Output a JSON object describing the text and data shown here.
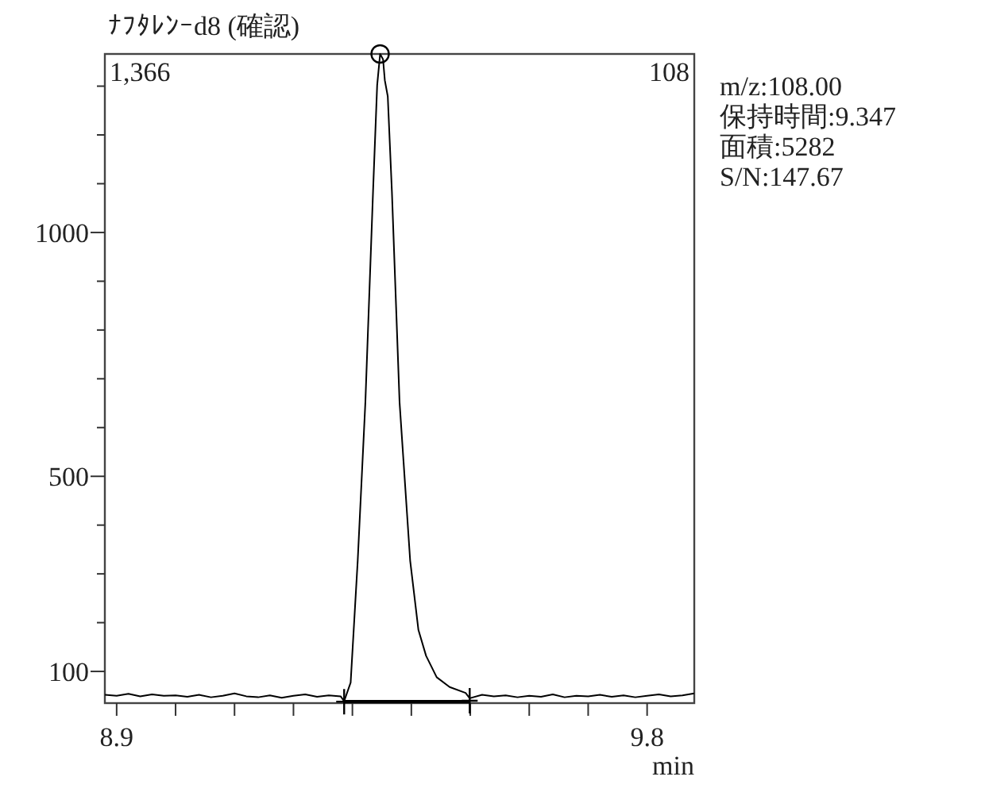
{
  "chart_data": {
    "type": "line",
    "title": "ﾅﾌﾀﾚﾝｰd8 (確認)",
    "xlabel": "min",
    "annotations": [
      "1,366",
      "108",
      "m/z:108.00",
      "保持時間:9.347",
      "面積:5282",
      "S/N:147.67"
    ],
    "xlim": [
      8.88,
      9.88
    ],
    "ylim": [
      35,
      1366
    ],
    "xticks": [
      8.9,
      {
        "value": 9.0,
        "label": null
      },
      {
        "value": 9.1,
        "label": null
      },
      {
        "value": 9.2,
        "label": null
      },
      {
        "value": 9.3,
        "label": null
      },
      {
        "value": 9.4,
        "label": null
      },
      {
        "value": 9.5,
        "label": null
      },
      {
        "value": 9.6,
        "label": null
      },
      {
        "value": 9.7,
        "label": null
      },
      9.8
    ],
    "yticks": [
      100,
      {
        "value": 200,
        "label": null
      },
      {
        "value": 300,
        "label": null
      },
      {
        "value": 400,
        "label": null
      },
      500,
      {
        "value": 600,
        "label": null
      },
      {
        "value": 700,
        "label": null
      },
      {
        "value": 800,
        "label": null
      },
      {
        "value": 900,
        "label": null
      },
      1000,
      {
        "value": 1100,
        "label": null
      },
      {
        "value": 1200,
        "label": null
      },
      {
        "value": 1300,
        "label": null
      }
    ],
    "grid": false,
    "series": [
      {
        "type": "line",
        "color": "#000000",
        "marker": "none",
        "x": [
          8.88,
          8.9,
          8.92,
          8.94,
          8.96,
          8.98,
          9.0,
          9.02,
          9.04,
          9.06,
          9.08,
          9.1,
          9.12,
          9.14,
          9.16,
          9.18,
          9.2,
          9.22,
          9.24,
          9.26,
          9.28,
          9.286,
          9.297,
          9.309,
          9.322,
          9.335,
          9.342,
          9.347,
          9.352,
          9.355,
          9.36,
          9.367,
          9.38,
          9.398,
          9.412,
          9.425,
          9.443,
          9.465,
          9.492,
          9.499,
          9.52,
          9.54,
          9.56,
          9.58,
          9.6,
          9.62,
          9.64,
          9.66,
          9.68,
          9.7,
          9.72,
          9.74,
          9.76,
          9.78,
          9.8,
          9.82,
          9.84,
          9.86,
          9.88
        ],
        "values": [
          52,
          50,
          54,
          49,
          53,
          50,
          51,
          48,
          52,
          47,
          50,
          55,
          49,
          47,
          51,
          46,
          50,
          53,
          48,
          51,
          49,
          39,
          77,
          327,
          652,
          1084,
          1302,
          1366,
          1355,
          1312,
          1279,
          1084,
          652,
          327,
          185,
          132,
          88,
          68,
          56,
          45,
          52,
          49,
          51,
          47,
          50,
          48,
          53,
          47,
          50,
          49,
          52,
          48,
          51,
          47,
          50,
          53,
          49,
          51,
          55
        ]
      },
      {
        "type": "line",
        "color": "#000000",
        "marker": "none",
        "x": [
          9.286,
          9.499
        ],
        "values": [
          38,
          38
        ]
      },
      {
        "type": "scatter",
        "color": "#000000",
        "marker": "circle",
        "x": [
          9.347
        ],
        "values": [
          1366
        ]
      },
      {
        "type": "scatter",
        "color": "#000000",
        "marker": "cross",
        "x": [
          9.286,
          9.499
        ],
        "values": [
          38,
          40
        ]
      }
    ]
  }
}
